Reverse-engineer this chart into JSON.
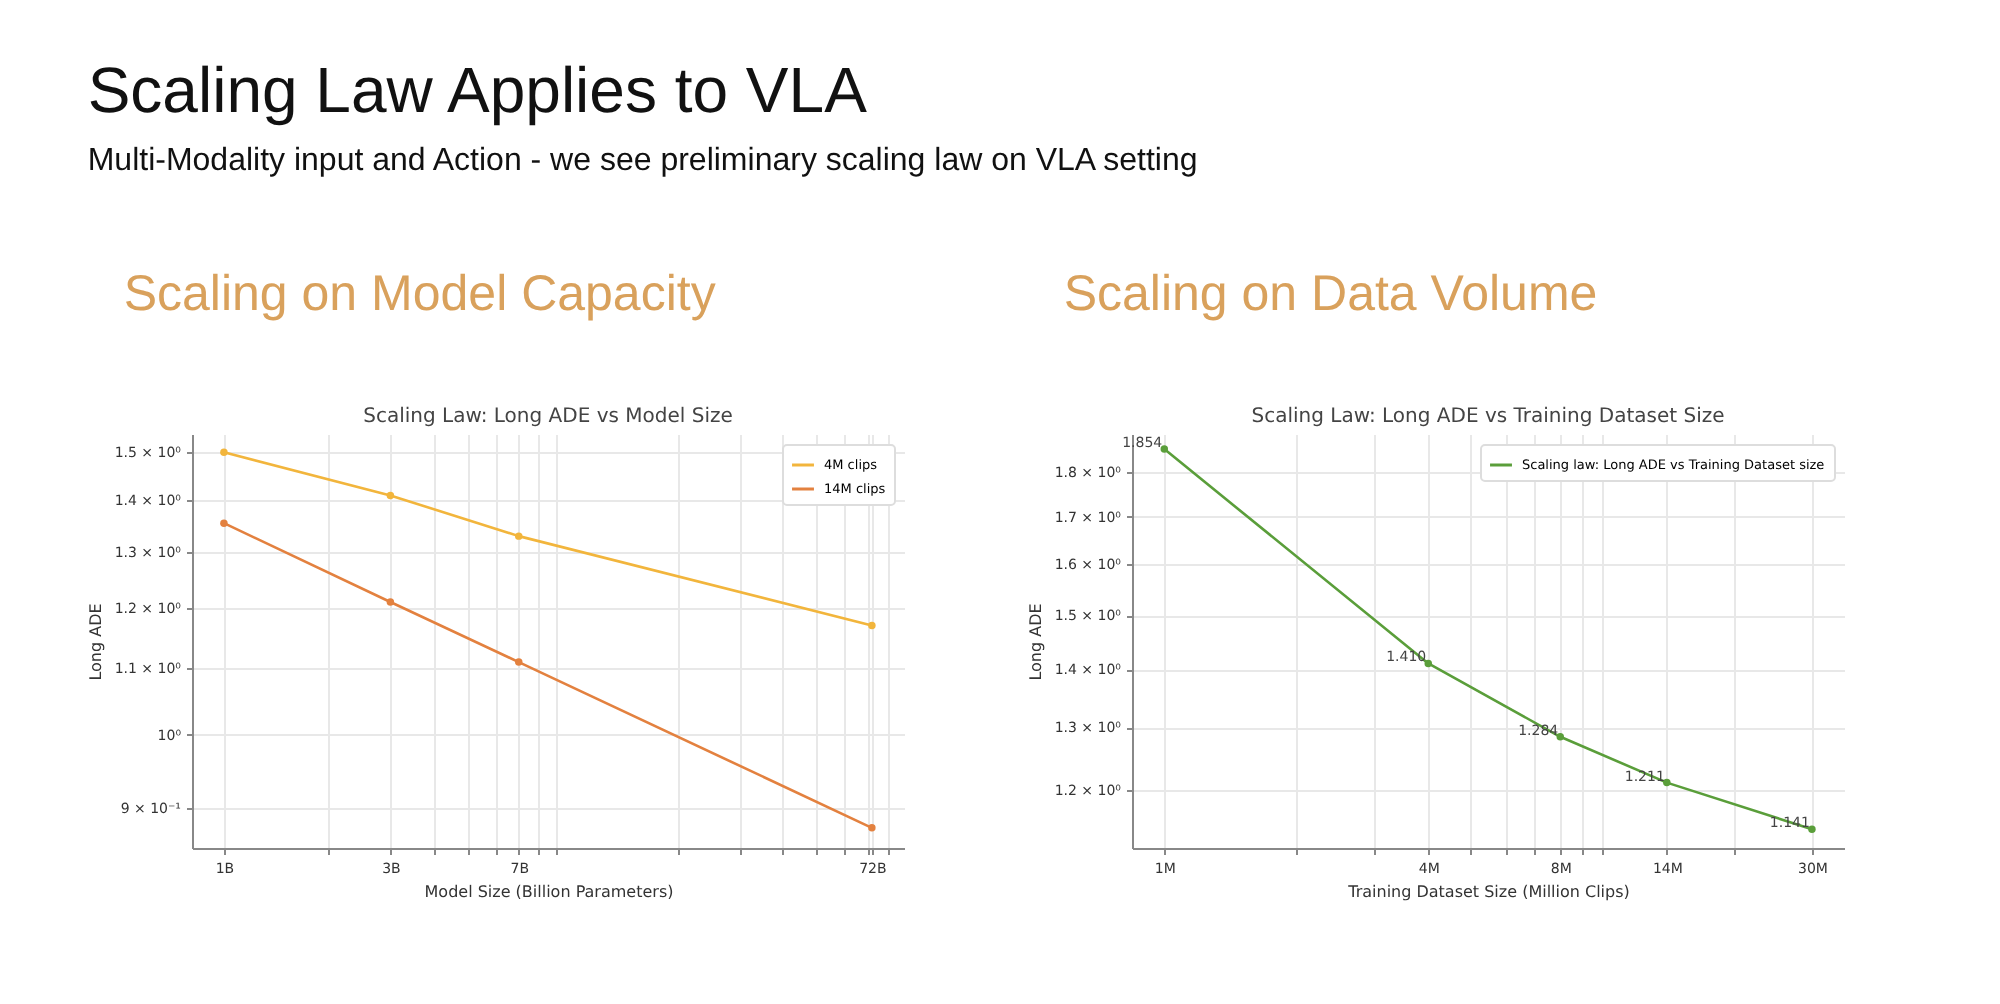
{
  "chart_data": [
    {
      "type": "other",
      "title": "Scaling Law Applies to VLA",
      "subtitle": "Multi-Modality input and Action - we see preliminary scaling law on VLA setting"
    },
    {
      "type": "line",
      "title": "Scaling on Model Capacity",
      "subtitle": "Scaling Law: Long ADE vs Model Size",
      "xlabel": "Model Size (Billion Parameters)",
      "ylabel": "Long ADE",
      "x": [
        1,
        3,
        7,
        72
      ],
      "series": [
        {
          "name": "4M clips",
          "color": "#f2b53c",
          "values": [
            1.5,
            1.41,
            1.33,
            1.17
          ]
        },
        {
          "name": "14M clips",
          "color": "#e3813f",
          "values": [
            1.355,
            1.21,
            1.11,
            0.875
          ]
        }
      ],
      "log": "xy",
      "xlim": [
        0.81,
        89
      ],
      "ylim": [
        0.85,
        1.54
      ],
      "xticks": [
        {
          "value": 1,
          "label": "1B"
        },
        {
          "value": 2,
          "label": null
        },
        {
          "value": 3,
          "label": "3B"
        },
        {
          "value": 4,
          "label": null
        },
        {
          "value": 5,
          "label": null
        },
        {
          "value": 6,
          "label": null
        },
        {
          "value": 7,
          "label": "7B"
        },
        {
          "value": 8,
          "label": null
        },
        {
          "value": 9,
          "label": null
        },
        {
          "value": 20,
          "label": null
        },
        {
          "value": 30,
          "label": null
        },
        {
          "value": 40,
          "label": null
        },
        {
          "value": 50,
          "label": null
        },
        {
          "value": 60,
          "label": null
        },
        {
          "value": 70,
          "label": null
        },
        {
          "value": 72,
          "label": "72B"
        },
        {
          "value": 80,
          "label": null
        }
      ],
      "yticks": [
        {
          "value": 0.9,
          "label": "9 × 10⁻¹"
        },
        {
          "value": 1,
          "label": "10⁰"
        },
        {
          "value": 1.1,
          "label": "1.1 × 10⁰"
        },
        {
          "value": 1.2,
          "label": "1.2 × 10⁰"
        },
        {
          "value": 1.3,
          "label": "1.3 × 10⁰"
        },
        {
          "value": 1.4,
          "label": "1.4 × 10⁰"
        },
        {
          "value": 1.5,
          "label": "1.5 × 10⁰"
        }
      ],
      "grid": true,
      "legend": "top right",
      "marker": "circle",
      "line_style": "solid"
    },
    {
      "type": "line",
      "title": "Scaling on Data Volume",
      "subtitle": "Scaling Law: Long ADE vs Training Dataset Size",
      "xlabel": "Training Dataset Size (Million Clips)",
      "ylabel": "Long ADE",
      "x": [
        1,
        4,
        8,
        14,
        30
      ],
      "series": [
        {
          "name": "Scaling law: Long ADE vs Training Dataset size",
          "color": "#5a9e3a",
          "values": [
            1.854,
            1.41,
            1.284,
            1.211,
            1.141
          ],
          "value_labels": [
            "1.854",
            "1.410",
            "1.284",
            "1.211",
            "1.141"
          ]
        }
      ],
      "log": "xy",
      "xlim": [
        0.844,
        35.5
      ],
      "ylim": [
        1.114,
        1.89
      ],
      "xticks": [
        {
          "value": 1,
          "label": "1M"
        },
        {
          "value": 2,
          "label": null
        },
        {
          "value": 3,
          "label": null
        },
        {
          "value": 4,
          "label": "4M"
        },
        {
          "value": 5,
          "label": null
        },
        {
          "value": 6,
          "label": null
        },
        {
          "value": 7,
          "label": null
        },
        {
          "value": 8,
          "label": "8M"
        },
        {
          "value": 9,
          "label": null
        },
        {
          "value": 10,
          "label": null
        },
        {
          "value": 14,
          "label": "14M"
        },
        {
          "value": 20,
          "label": null
        },
        {
          "value": 30,
          "label": "30M"
        }
      ],
      "yticks": [
        {
          "value": 1.2,
          "label": "1.2 × 10⁰"
        },
        {
          "value": 1.3,
          "label": "1.3 × 10⁰"
        },
        {
          "value": 1.4,
          "label": "1.4 × 10⁰"
        },
        {
          "value": 1.5,
          "label": "1.5 × 10⁰"
        },
        {
          "value": 1.6,
          "label": "1.6 × 10⁰"
        },
        {
          "value": 1.7,
          "label": "1.7 × 10⁰"
        },
        {
          "value": 1.8,
          "label": "1.8 × 10⁰"
        }
      ],
      "grid": true,
      "legend": "top right",
      "marker": "circle",
      "line_style": "solid"
    }
  ]
}
